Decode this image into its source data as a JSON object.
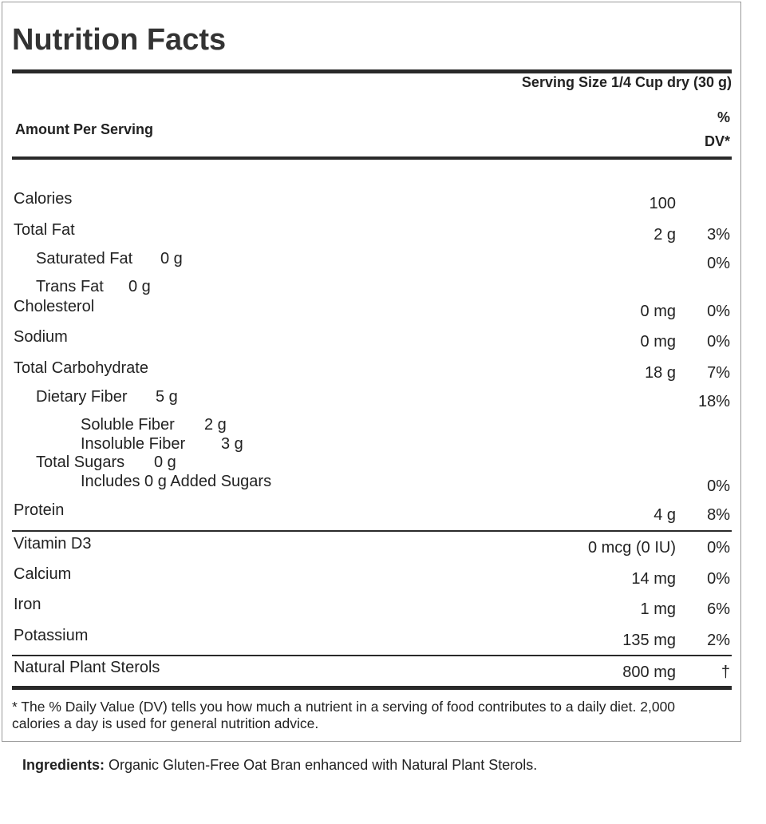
{
  "title": "Nutrition Facts",
  "serving_size": "Serving Size 1/4 Cup dry (30 g)",
  "amount_per_serving": "Amount Per Serving",
  "dv_header": "% DV*",
  "rows": [
    {
      "label": "Calories",
      "amount": "100"
    },
    {
      "label": "Total Fat",
      "amount": "2 g",
      "dv": "3%"
    },
    {
      "label": "Saturated Fat",
      "amount": "0 g",
      "dv": "0%"
    },
    {
      "label": "Trans Fat",
      "amount": "0 g"
    },
    {
      "label": "Cholesterol",
      "amount": "0 mg",
      "dv": "0%"
    },
    {
      "label": "Sodium",
      "amount": "0 mg",
      "dv": "0%"
    },
    {
      "label": "Total Carbohydrate",
      "amount": "18 g",
      "dv": "7%"
    },
    {
      "label": "Dietary Fiber",
      "amount": "5 g",
      "dv": "18%"
    },
    {
      "label": "Soluble Fiber",
      "amount": "2 g"
    },
    {
      "label": "Insoluble Fiber",
      "amount": "3 g"
    },
    {
      "label": "Total Sugars",
      "amount": "0 g"
    },
    {
      "label": "Includes 0 g Added Sugars",
      "dv": "0%"
    },
    {
      "label": "Protein",
      "amount": "4 g",
      "dv": "8%"
    },
    {
      "label": "Vitamin D3",
      "amount": "0 mcg (0 IU)",
      "dv": "0%"
    },
    {
      "label": "Calcium",
      "amount": "14 mg",
      "dv": "0%"
    },
    {
      "label": "Iron",
      "amount": "1 mg",
      "dv": "6%"
    },
    {
      "label": "Potassium",
      "amount": "135 mg",
      "dv": "2%"
    },
    {
      "label": "Natural Plant Sterols",
      "amount": "800 mg",
      "dv": "†"
    }
  ],
  "footnote": "* The % Daily Value (DV) tells you how much a nutrient in a serving of food contributes to a daily diet. 2,000 calories a day is used for general nutrition advice.",
  "ingredients": {
    "label": "Ingredients:",
    "text": "Organic Gluten-Free Oat Bran enhanced with Natural Plant Sterols."
  }
}
